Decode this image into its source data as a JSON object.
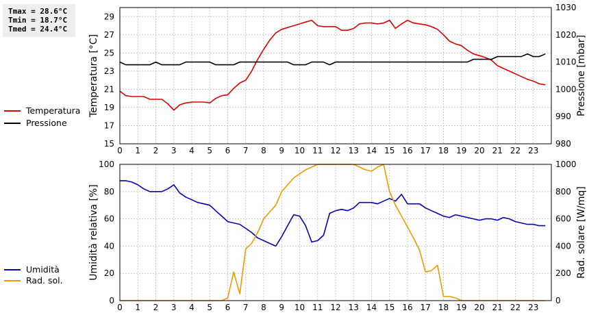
{
  "stats": {
    "tmax": "Tmax = 28.6°C",
    "tmin": "Tmin = 18.7°C",
    "tmed": "Tmed = 24.4°C"
  },
  "legend_top": [
    {
      "label": "Temperatura",
      "color": "#dd0000"
    },
    {
      "label": "Pressione",
      "color": "#000000"
    }
  ],
  "legend_bottom": [
    {
      "label": "Umidità",
      "color": "#0000bb"
    },
    {
      "label": "Rad. sol.",
      "color": "#ee9900"
    }
  ],
  "chart_data": [
    {
      "type": "line",
      "x_ticks": [
        0,
        1,
        2,
        3,
        4,
        5,
        6,
        7,
        8,
        9,
        10,
        11,
        12,
        13,
        14,
        15,
        16,
        17,
        18,
        19,
        20,
        21,
        22,
        23
      ],
      "xlim": [
        0,
        24
      ],
      "ylabel_left": "Temperatura [°C]",
      "ylabel_right": "Pressione [mbar]",
      "ylim_left": [
        15,
        30
      ],
      "yticks_left": [
        15,
        17,
        19,
        21,
        23,
        25,
        27,
        29
      ],
      "ylim_right": [
        980,
        1030
      ],
      "yticks_right": [
        980,
        990,
        1000,
        1010,
        1020,
        1030
      ],
      "grid": true,
      "series": [
        {
          "name": "Temperatura",
          "axis": "left",
          "color": "#dd0000",
          "x": [
            0,
            0.33,
            0.67,
            1,
            1.33,
            1.67,
            2,
            2.33,
            2.67,
            3,
            3.33,
            3.67,
            4,
            4.33,
            4.67,
            5,
            5.33,
            5.67,
            6,
            6.33,
            6.67,
            7,
            7.33,
            7.67,
            8,
            8.33,
            8.67,
            9,
            9.33,
            9.67,
            10,
            10.33,
            10.67,
            11,
            11.33,
            11.67,
            12,
            12.33,
            12.67,
            13,
            13.33,
            13.67,
            14,
            14.33,
            14.67,
            15,
            15.33,
            15.67,
            16,
            16.33,
            16.67,
            17,
            17.33,
            17.67,
            18,
            18.33,
            18.67,
            19,
            19.33,
            19.67,
            20,
            20.33,
            20.67,
            21,
            21.33,
            21.67,
            22,
            22.33,
            22.67,
            23,
            23.33,
            23.67
          ],
          "y": [
            20.8,
            20.3,
            20.2,
            20.2,
            20.2,
            19.9,
            19.9,
            19.9,
            19.4,
            18.7,
            19.3,
            19.5,
            19.6,
            19.6,
            19.6,
            19.5,
            20.0,
            20.3,
            20.4,
            21.1,
            21.7,
            22.0,
            23.0,
            24.3,
            25.4,
            26.4,
            27.2,
            27.6,
            27.8,
            28.0,
            28.2,
            28.4,
            28.6,
            28.0,
            27.9,
            27.9,
            27.9,
            27.5,
            27.5,
            27.7,
            28.2,
            28.3,
            28.3,
            28.2,
            28.3,
            28.6,
            27.7,
            28.2,
            28.6,
            28.3,
            28.2,
            28.1,
            27.9,
            27.6,
            27.0,
            26.3,
            26.0,
            25.8,
            25.3,
            24.9,
            24.7,
            24.5,
            24.2,
            23.6,
            23.3,
            23.0,
            22.7,
            22.4,
            22.1,
            21.9,
            21.6,
            21.5
          ]
        },
        {
          "name": "Pressione",
          "axis": "right",
          "color": "#000000",
          "x": [
            0,
            0.33,
            0.67,
            1,
            1.33,
            1.67,
            2,
            2.33,
            2.67,
            3,
            3.33,
            3.67,
            4,
            4.33,
            4.67,
            5,
            5.33,
            5.67,
            6,
            6.33,
            6.67,
            7,
            7.33,
            7.67,
            8,
            8.33,
            8.67,
            9,
            9.33,
            9.67,
            10,
            10.33,
            10.67,
            11,
            11.33,
            11.67,
            12,
            12.33,
            12.67,
            13,
            13.33,
            13.67,
            14,
            14.33,
            14.67,
            15,
            15.33,
            15.67,
            16,
            16.33,
            16.67,
            17,
            17.33,
            17.67,
            18,
            18.33,
            18.67,
            19,
            19.33,
            19.67,
            20,
            20.33,
            20.67,
            21,
            21.33,
            21.67,
            22,
            22.33,
            22.67,
            23,
            23.33,
            23.67
          ],
          "y": [
            1010,
            1009,
            1009,
            1009,
            1009,
            1009,
            1010,
            1009,
            1009,
            1009,
            1009,
            1010,
            1010,
            1010,
            1010,
            1010,
            1009,
            1009,
            1009,
            1009,
            1010,
            1010,
            1010,
            1010,
            1010,
            1010,
            1010,
            1010,
            1010,
            1009,
            1009,
            1009,
            1010,
            1010,
            1010,
            1009,
            1010,
            1010,
            1010,
            1010,
            1010,
            1010,
            1010,
            1010,
            1010,
            1010,
            1010,
            1010,
            1010,
            1010,
            1010,
            1010,
            1010,
            1010,
            1010,
            1010,
            1010,
            1010,
            1010,
            1011,
            1011,
            1011,
            1011,
            1012,
            1012,
            1012,
            1012,
            1012,
            1013,
            1012,
            1012,
            1013
          ]
        }
      ]
    },
    {
      "type": "line",
      "x_ticks": [
        0,
        1,
        2,
        3,
        4,
        5,
        6,
        7,
        8,
        9,
        10,
        11,
        12,
        13,
        14,
        15,
        16,
        17,
        18,
        19,
        20,
        21,
        22,
        23
      ],
      "xlim": [
        0,
        24
      ],
      "ylabel_left": "Umidità relativa [%]",
      "ylabel_right": "Rad. solare [W/mq]",
      "ylim_left": [
        0,
        100
      ],
      "yticks_left": [
        0,
        20,
        40,
        60,
        80,
        100
      ],
      "ylim_right": [
        0,
        1000
      ],
      "yticks_right": [
        0,
        200,
        400,
        600,
        800,
        1000
      ],
      "grid": true,
      "series": [
        {
          "name": "Umidità",
          "axis": "left",
          "color": "#0000bb",
          "x": [
            0,
            0.33,
            0.67,
            1,
            1.33,
            1.67,
            2,
            2.33,
            2.67,
            3,
            3.33,
            3.67,
            4,
            4.33,
            4.67,
            5,
            5.33,
            5.67,
            6,
            6.33,
            6.67,
            7,
            7.33,
            7.67,
            8,
            8.33,
            8.67,
            9,
            9.33,
            9.67,
            10,
            10.33,
            10.67,
            11,
            11.33,
            11.67,
            12,
            12.33,
            12.67,
            13,
            13.33,
            13.67,
            14,
            14.33,
            14.67,
            15,
            15.33,
            15.67,
            16,
            16.33,
            16.67,
            17,
            17.33,
            17.67,
            18,
            18.33,
            18.67,
            19,
            19.33,
            19.67,
            20,
            20.33,
            20.67,
            21,
            21.33,
            21.67,
            22,
            22.33,
            22.67,
            23,
            23.33,
            23.67
          ],
          "y": [
            88,
            88,
            87,
            85,
            82,
            80,
            80,
            80,
            82,
            85,
            79,
            76,
            74,
            72,
            71,
            70,
            66,
            62,
            58,
            57,
            56,
            53,
            50,
            46,
            44,
            42,
            40,
            47,
            55,
            63,
            62,
            55,
            43,
            44,
            48,
            64,
            66,
            67,
            66,
            68,
            72,
            72,
            72,
            71,
            73,
            75,
            73,
            78,
            71,
            71,
            71,
            68,
            66,
            64,
            62,
            61,
            63,
            62,
            61,
            60,
            59,
            60,
            60,
            59,
            61,
            60,
            58,
            57,
            56,
            56,
            55,
            55
          ]
        },
        {
          "name": "Rad. sol.",
          "axis": "right",
          "color": "#ee9900",
          "x": [
            0,
            0.33,
            0.67,
            1,
            1.33,
            1.67,
            2,
            2.33,
            2.67,
            3,
            3.33,
            3.67,
            4,
            4.33,
            4.67,
            5,
            5.33,
            5.67,
            6,
            6.33,
            6.67,
            7,
            7.33,
            7.67,
            8,
            8.33,
            8.67,
            9,
            9.33,
            9.67,
            10,
            10.33,
            10.67,
            11,
            11.33,
            11.67,
            12,
            12.33,
            12.67,
            13,
            13.33,
            13.67,
            14,
            14.33,
            14.67,
            15,
            15.33,
            15.67,
            16,
            16.33,
            16.67,
            17,
            17.33,
            17.67,
            18,
            18.33,
            18.67,
            19,
            19.33,
            19.67,
            20,
            20.33,
            20.67,
            21,
            21.33,
            21.67,
            22,
            22.33,
            22.67,
            23,
            23.33,
            23.67
          ],
          "y": [
            0,
            0,
            0,
            0,
            0,
            0,
            0,
            0,
            0,
            0,
            0,
            0,
            0,
            0,
            0,
            0,
            0,
            0,
            20,
            210,
            50,
            380,
            420,
            500,
            600,
            650,
            700,
            800,
            850,
            900,
            930,
            960,
            980,
            1000,
            1000,
            1000,
            1000,
            1000,
            1000,
            1000,
            980,
            960,
            950,
            980,
            1000,
            800,
            700,
            620,
            540,
            460,
            370,
            210,
            220,
            260,
            30,
            30,
            20,
            0,
            0,
            0,
            0,
            0,
            0,
            0,
            0,
            0,
            0,
            0,
            0,
            0,
            0,
            0
          ]
        }
      ]
    }
  ]
}
